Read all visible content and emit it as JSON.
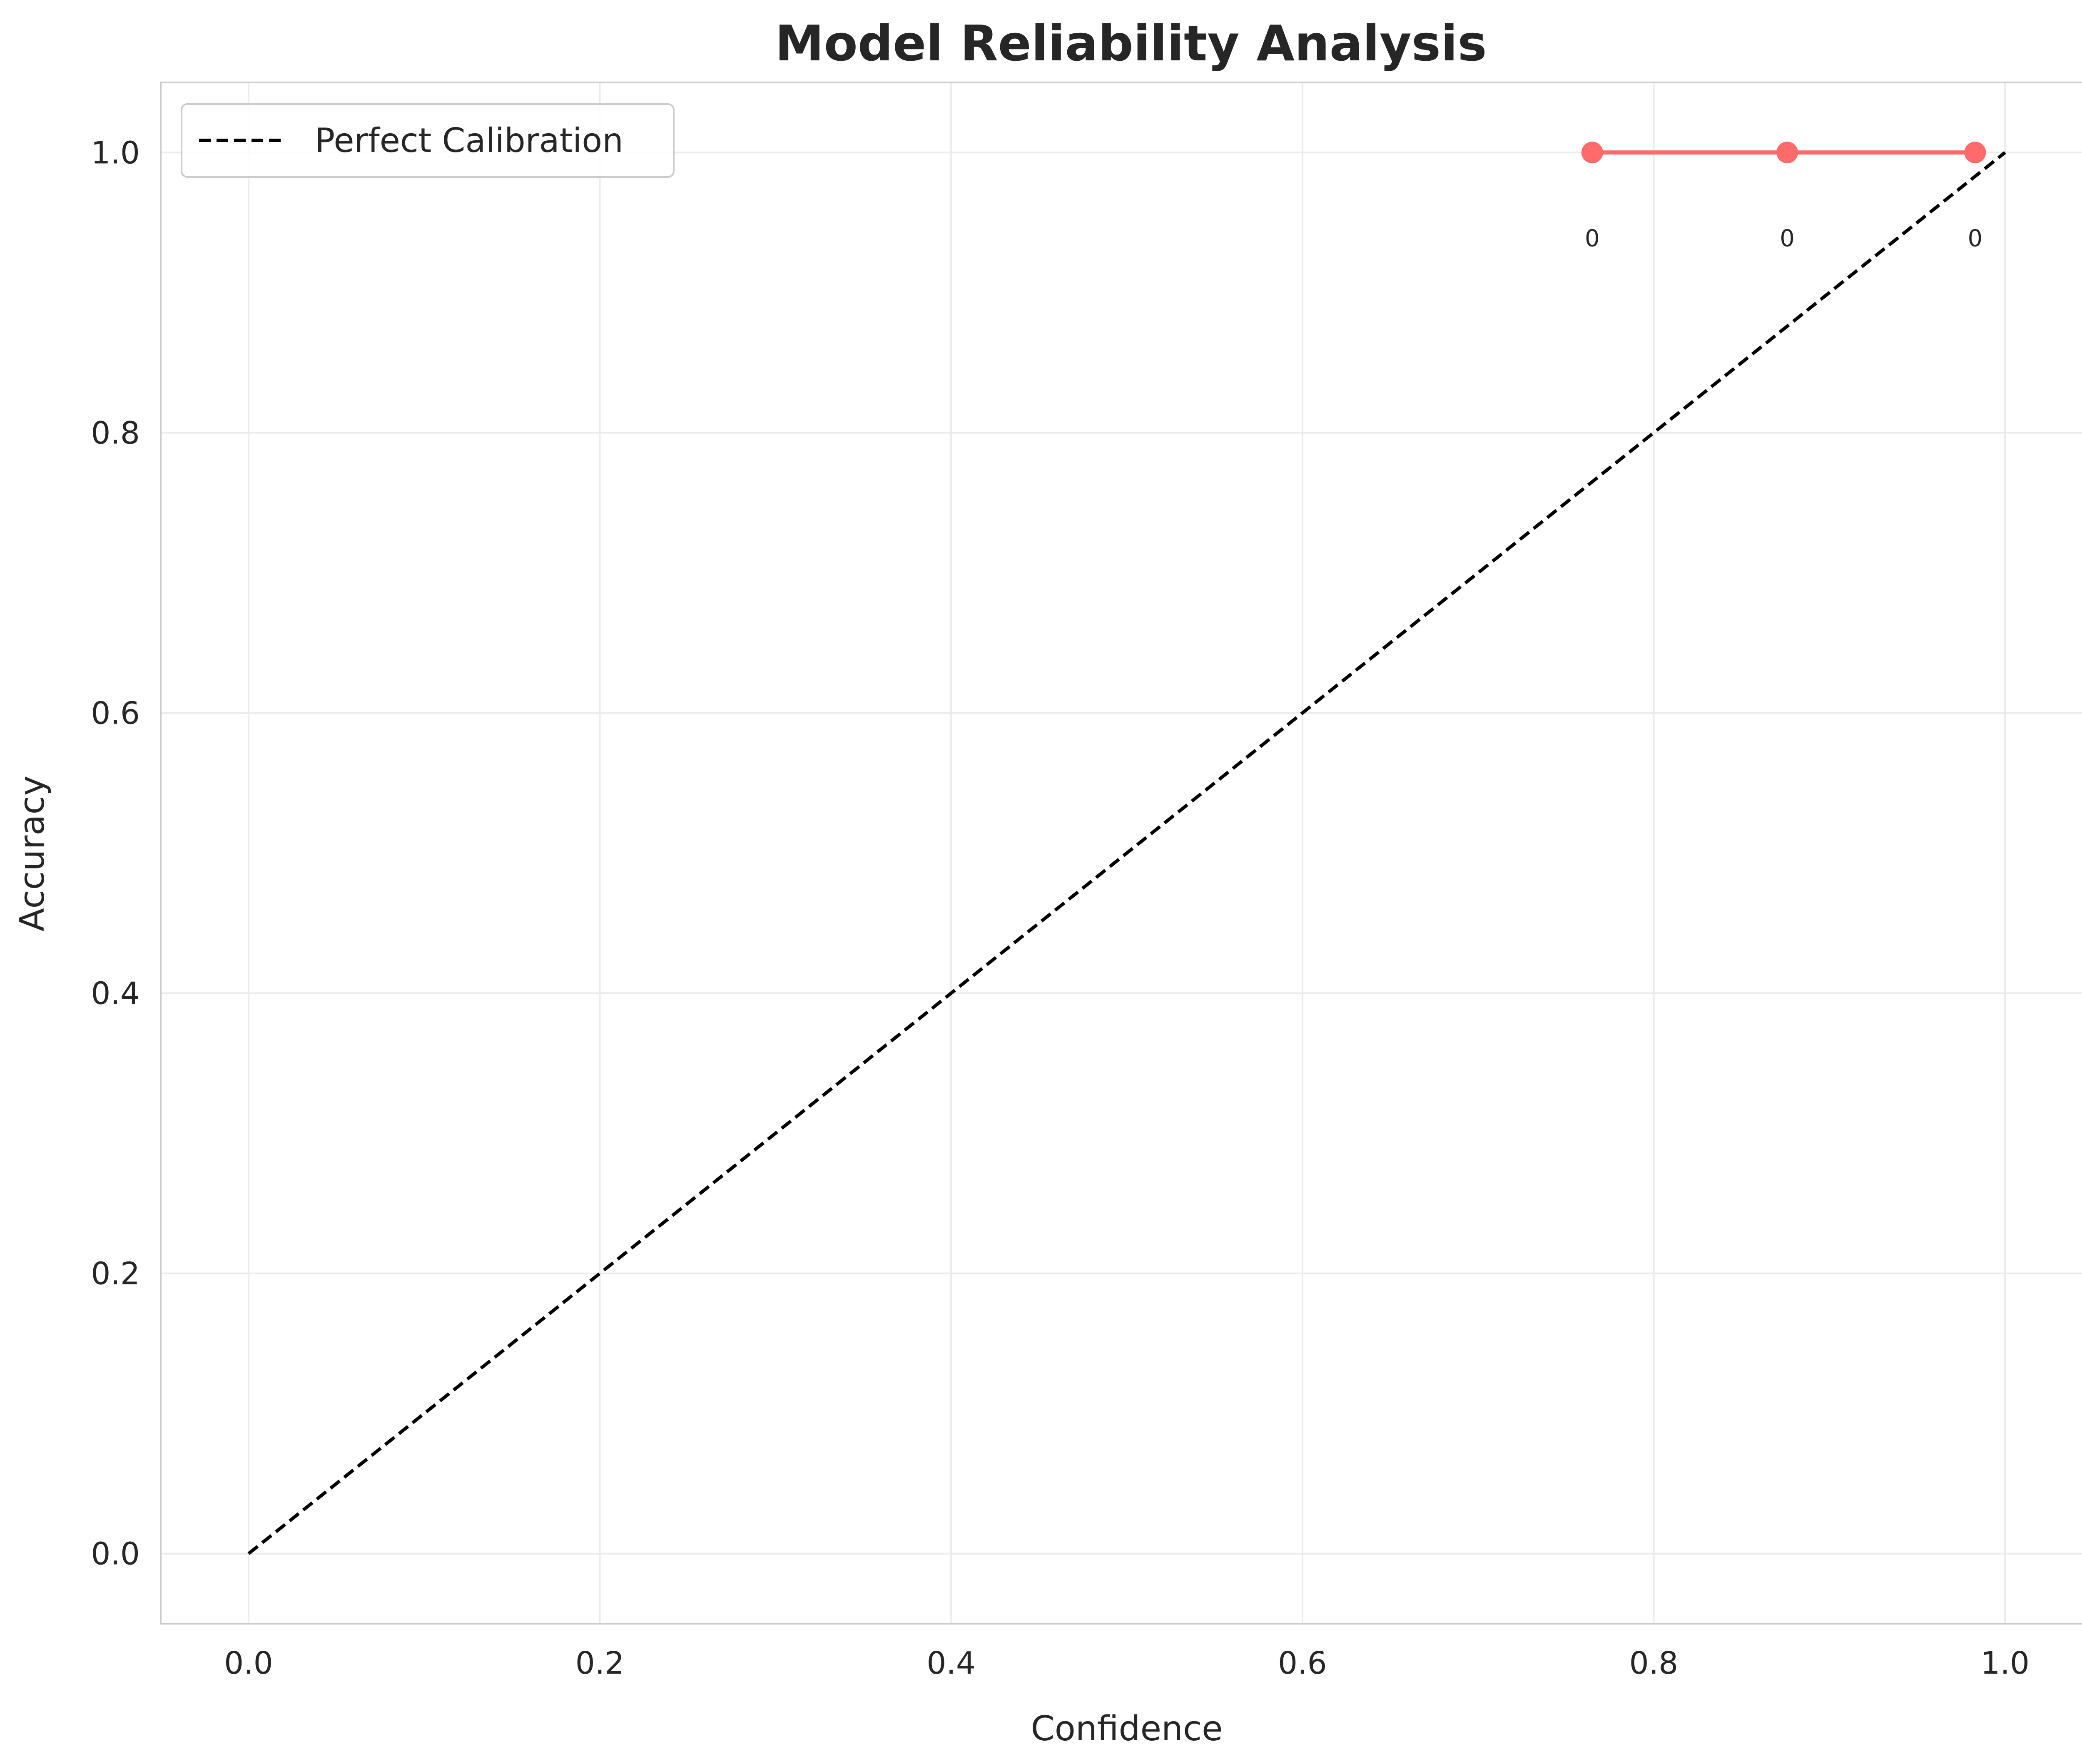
{
  "chart_data": {
    "type": "line",
    "title": "Model Reliability Analysis",
    "xlabel": "Confidence",
    "ylabel": "Accuracy",
    "xlim": [
      -0.05,
      1.05
    ],
    "ylim": [
      -0.05,
      1.05
    ],
    "xticks": [
      0.0,
      0.2,
      0.4,
      0.6,
      0.8,
      1.0
    ],
    "yticks": [
      0.0,
      0.2,
      0.4,
      0.6,
      0.8,
      1.0
    ],
    "xtick_labels": [
      "0.0",
      "0.2",
      "0.4",
      "0.6",
      "0.8",
      "1.0"
    ],
    "ytick_labels": [
      "0.0",
      "0.2",
      "0.4",
      "0.6",
      "0.8",
      "1.0"
    ],
    "grid": true,
    "legend": {
      "position": "top-left",
      "entries": [
        "Perfect Calibration"
      ]
    },
    "series": [
      {
        "name": "Perfect Calibration",
        "style": "dashed",
        "color": "#000000",
        "x": [
          0.0,
          1.0
        ],
        "y": [
          0.0,
          1.0
        ]
      },
      {
        "style": "solid-marker",
        "color": "#ff6b6b",
        "x": [
          0.765,
          0.876,
          0.983
        ],
        "y": [
          1.0,
          1.0,
          1.0
        ],
        "point_labels": [
          "0",
          "0",
          "0"
        ]
      }
    ]
  }
}
